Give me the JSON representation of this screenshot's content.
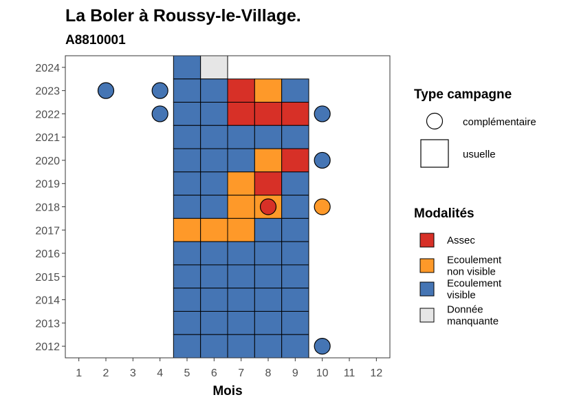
{
  "chart_data": {
    "type": "heatmap",
    "title": "La Boler à Roussy-le-Village.",
    "subtitle": "A8810001",
    "xlabel": "Mois",
    "ylabel": "",
    "x_ticks": [
      1,
      2,
      3,
      4,
      5,
      6,
      7,
      8,
      9,
      10,
      11,
      12
    ],
    "y_ticks": [
      2012,
      2013,
      2014,
      2015,
      2016,
      2017,
      2018,
      2019,
      2020,
      2021,
      2022,
      2023,
      2024
    ],
    "xlim": [
      0.5,
      12.5
    ],
    "ylim": [
      2011.5,
      2024.5
    ],
    "colors": {
      "Assec": "#d73027",
      "Ecoulement non visible": "#fe9929",
      "Ecoulement visible": "#4575b4",
      "Donnée manquante": "#e6e6e6"
    },
    "legend_campagne": {
      "title": "Type campagne",
      "items": [
        {
          "label": "complémentaire",
          "shape": "circle"
        },
        {
          "label": "usuelle",
          "shape": "square"
        }
      ]
    },
    "legend_modalites": {
      "title": "Modalités",
      "items": [
        {
          "key": "Assec",
          "lines": [
            "Assec"
          ]
        },
        {
          "key": "Ecoulement non visible",
          "lines": [
            "Ecoulement",
            "non visible"
          ]
        },
        {
          "key": "Ecoulement visible",
          "lines": [
            "Ecoulement",
            "visible"
          ]
        },
        {
          "key": "Donnée manquante",
          "lines": [
            "Donnée",
            "manquante"
          ]
        }
      ]
    },
    "usuelle": [
      {
        "year": 2024,
        "values": [
          [
            "5",
            "Ecoulement visible"
          ],
          [
            "6",
            "Donnée manquante"
          ]
        ]
      },
      {
        "year": 2023,
        "values": [
          [
            "5",
            "Ecoulement visible"
          ],
          [
            "6",
            "Ecoulement visible"
          ],
          [
            "7",
            "Assec"
          ],
          [
            "8",
            "Ecoulement non visible"
          ],
          [
            "9",
            "Ecoulement visible"
          ]
        ]
      },
      {
        "year": 2022,
        "values": [
          [
            "5",
            "Ecoulement visible"
          ],
          [
            "6",
            "Ecoulement visible"
          ],
          [
            "7",
            "Assec"
          ],
          [
            "8",
            "Assec"
          ],
          [
            "9",
            "Assec"
          ]
        ]
      },
      {
        "year": 2021,
        "values": [
          [
            "5",
            "Ecoulement visible"
          ],
          [
            "6",
            "Ecoulement visible"
          ],
          [
            "7",
            "Ecoulement visible"
          ],
          [
            "8",
            "Ecoulement visible"
          ],
          [
            "9",
            "Ecoulement visible"
          ]
        ]
      },
      {
        "year": 2020,
        "values": [
          [
            "5",
            "Ecoulement visible"
          ],
          [
            "6",
            "Ecoulement visible"
          ],
          [
            "7",
            "Ecoulement visible"
          ],
          [
            "8",
            "Ecoulement non visible"
          ],
          [
            "9",
            "Assec"
          ]
        ]
      },
      {
        "year": 2019,
        "values": [
          [
            "5",
            "Ecoulement visible"
          ],
          [
            "6",
            "Ecoulement visible"
          ],
          [
            "7",
            "Ecoulement non visible"
          ],
          [
            "8",
            "Assec"
          ],
          [
            "9",
            "Ecoulement visible"
          ]
        ]
      },
      {
        "year": 2018,
        "values": [
          [
            "5",
            "Ecoulement visible"
          ],
          [
            "6",
            "Ecoulement visible"
          ],
          [
            "7",
            "Ecoulement non visible"
          ],
          [
            "8",
            "Ecoulement non visible"
          ],
          [
            "9",
            "Ecoulement visible"
          ]
        ]
      },
      {
        "year": 2017,
        "values": [
          [
            "5",
            "Ecoulement non visible"
          ],
          [
            "6",
            "Ecoulement non visible"
          ],
          [
            "7",
            "Ecoulement non visible"
          ],
          [
            "8",
            "Ecoulement visible"
          ],
          [
            "9",
            "Ecoulement visible"
          ]
        ]
      },
      {
        "year": 2016,
        "values": [
          [
            "5",
            "Ecoulement visible"
          ],
          [
            "6",
            "Ecoulement visible"
          ],
          [
            "7",
            "Ecoulement visible"
          ],
          [
            "8",
            "Ecoulement visible"
          ],
          [
            "9",
            "Ecoulement visible"
          ]
        ]
      },
      {
        "year": 2015,
        "values": [
          [
            "5",
            "Ecoulement visible"
          ],
          [
            "6",
            "Ecoulement visible"
          ],
          [
            "7",
            "Ecoulement visible"
          ],
          [
            "8",
            "Ecoulement visible"
          ],
          [
            "9",
            "Ecoulement visible"
          ]
        ]
      },
      {
        "year": 2014,
        "values": [
          [
            "5",
            "Ecoulement visible"
          ],
          [
            "6",
            "Ecoulement visible"
          ],
          [
            "7",
            "Ecoulement visible"
          ],
          [
            "8",
            "Ecoulement visible"
          ],
          [
            "9",
            "Ecoulement visible"
          ]
        ]
      },
      {
        "year": 2013,
        "values": [
          [
            "5",
            "Ecoulement visible"
          ],
          [
            "6",
            "Ecoulement visible"
          ],
          [
            "7",
            "Ecoulement visible"
          ],
          [
            "8",
            "Ecoulement visible"
          ],
          [
            "9",
            "Ecoulement visible"
          ]
        ]
      },
      {
        "year": 2012,
        "values": [
          [
            "5",
            "Ecoulement visible"
          ],
          [
            "6",
            "Ecoulement visible"
          ],
          [
            "7",
            "Ecoulement visible"
          ],
          [
            "8",
            "Ecoulement visible"
          ],
          [
            "9",
            "Ecoulement visible"
          ]
        ]
      }
    ],
    "complementaire": [
      {
        "year": 2023,
        "month": 2,
        "value": "Ecoulement visible"
      },
      {
        "year": 2023,
        "month": 4,
        "value": "Ecoulement visible"
      },
      {
        "year": 2022,
        "month": 4,
        "value": "Ecoulement visible"
      },
      {
        "year": 2022,
        "month": 10,
        "value": "Ecoulement visible"
      },
      {
        "year": 2020,
        "month": 10,
        "value": "Ecoulement visible"
      },
      {
        "year": 2018,
        "month": 8,
        "value": "Assec"
      },
      {
        "year": 2018,
        "month": 10,
        "value": "Ecoulement non visible"
      },
      {
        "year": 2012,
        "month": 10,
        "value": "Ecoulement visible"
      }
    ]
  }
}
